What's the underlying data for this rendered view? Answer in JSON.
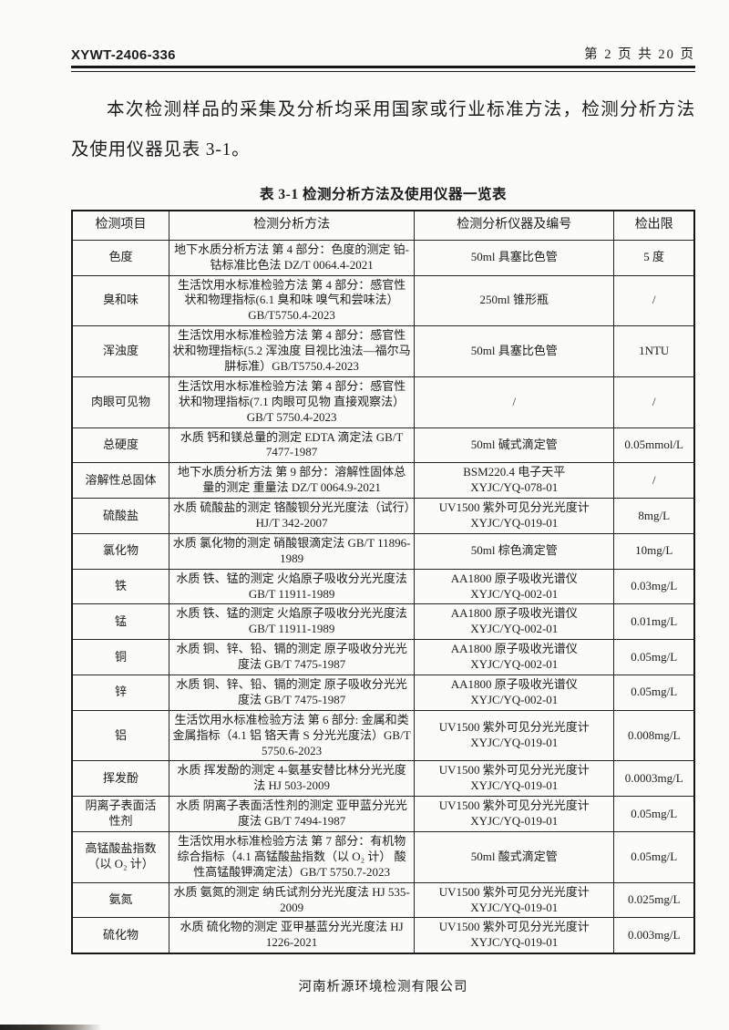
{
  "header": {
    "doc_number": "XYWT-2406-336",
    "page_info": "第 2 页 共 20 页"
  },
  "intro": "本次检测样品的采集及分析均采用国家或行业标准方法，检测分析方法及使用仪器见表 3-1。",
  "table": {
    "title": "表 3-1  检测分析方法及使用仪器一览表",
    "headers": [
      "检测项目",
      "检测分析方法",
      "检测分析仪器及编号",
      "检出限"
    ],
    "rows": [
      {
        "item": "色度",
        "method": "地下水质分析方法 第 4 部分：色度的测定 铂-钴标准比色法 DZ/T 0064.4-2021",
        "instrument": "50ml 具塞比色管",
        "limit": "5 度"
      },
      {
        "item": "臭和味",
        "method": "生活饮用水标准检验方法 第 4 部分：感官性状和物理指标(6.1 臭和味 嗅气和尝味法） GB/T5750.4-2023",
        "instrument": "250ml 锥形瓶",
        "limit": "/"
      },
      {
        "item": "浑浊度",
        "method": "生活饮用水标准检验方法 第 4 部分：感官性状和物理指标(5.2 浑浊度 目视比浊法—福尔马肼标准）GB/T5750.4-2023",
        "instrument": "50ml 具塞比色管",
        "limit": "1NTU"
      },
      {
        "item": "肉眼可见物",
        "method": "生活饮用水标准检验方法 第 4 部分：感官性状和物理指标(7.1 肉眼可见物 直接观察法）GB/T 5750.4-2023",
        "instrument": "/",
        "limit": "/"
      },
      {
        "item": "总硬度",
        "method": "水质 钙和镁总量的测定 EDTA 滴定法 GB/T 7477-1987",
        "instrument": "50ml 碱式滴定管",
        "limit": "0.05mmol/L"
      },
      {
        "item": "溶解性总固体",
        "method": "地下水质分析方法 第 9 部分：溶解性固体总量的测定 重量法 DZ/T 0064.9-2021",
        "instrument": "BSM220.4 电子天平\nXYJC/YQ-078-01",
        "limit": "/"
      },
      {
        "item": "硫酸盐",
        "method": "水质 硫酸盐的测定 铬酸钡分光光度法（试行）HJ/T 342-2007",
        "instrument": "UV1500 紫外可见分光光度计\nXYJC/YQ-019-01",
        "limit": "8mg/L"
      },
      {
        "item": "氯化物",
        "method": "水质 氯化物的测定 硝酸银滴定法 GB/T 11896-1989",
        "instrument": "50ml 棕色滴定管",
        "limit": "10mg/L"
      },
      {
        "item": "铁",
        "method": "水质 铁、锰的测定 火焰原子吸收分光光度法 GB/T 11911-1989",
        "instrument": "AA1800 原子吸收光谱仪\nXYJC/YQ-002-01",
        "limit": "0.03mg/L"
      },
      {
        "item": "锰",
        "method": "水质 铁、锰的测定 火焰原子吸收分光光度法 GB/T 11911-1989",
        "instrument": "AA1800 原子吸收光谱仪\nXYJC/YQ-002-01",
        "limit": "0.01mg/L"
      },
      {
        "item": "铜",
        "method": "水质 铜、锌、铅、镉的测定 原子吸收分光光度法 GB/T 7475-1987",
        "instrument": "AA1800 原子吸收光谱仪\nXYJC/YQ-002-01",
        "limit": "0.05mg/L"
      },
      {
        "item": "锌",
        "method": "水质 铜、锌、铅、镉的测定 原子吸收分光光度法 GB/T 7475-1987",
        "instrument": "AA1800 原子吸收光谱仪\nXYJC/YQ-002-01",
        "limit": "0.05mg/L"
      },
      {
        "item": "铝",
        "method": "生活饮用水标准检验方法 第 6 部分: 金属和类金属指标（4.1 铝 铬天青 S 分光光度法）GB/T 5750.6-2023",
        "instrument": "UV1500 紫外可见分光光度计\nXYJC/YQ-019-01",
        "limit": "0.008mg/L"
      },
      {
        "item": "挥发酚",
        "method": "水质 挥发酚的测定 4-氨基安替比林分光光度法 HJ 503-2009",
        "instrument": "UV1500 紫外可见分光光度计\nXYJC/YQ-019-01",
        "limit": "0.0003mg/L"
      },
      {
        "item": "阴离子表面活\n性剂",
        "method": "水质 阴离子表面活性剂的测定 亚甲蓝分光光度法 GB/T 7494-1987",
        "instrument": "UV1500 紫外可见分光光度计\nXYJC/YQ-019-01",
        "limit": "0.05mg/L"
      },
      {
        "item": "高锰酸盐指数\n（以 O₂ 计）",
        "method": "生活饮用水标准检验方法 第 7 部分：有机物综合指标（4.1 高锰酸盐指数（以 O₂ 计） 酸性高锰酸钾滴定法）GB/T 5750.7-2023",
        "instrument": "50ml 酸式滴定管",
        "limit": "0.05mg/L"
      },
      {
        "item": "氨氮",
        "method": "水质 氨氮的测定 纳氏试剂分光光度法 HJ 535-2009",
        "instrument": "UV1500 紫外可见分光光度计\nXYJC/YQ-019-01",
        "limit": "0.025mg/L"
      },
      {
        "item": "硫化物",
        "method": "水质 硫化物的测定 亚甲基蓝分光光度法 HJ 1226-2021",
        "instrument": "UV1500 紫外可见分光光度计\nXYJC/YQ-019-01",
        "limit": "0.003mg/L"
      }
    ]
  },
  "footer": {
    "company": "河南析源环境检测有限公司"
  }
}
